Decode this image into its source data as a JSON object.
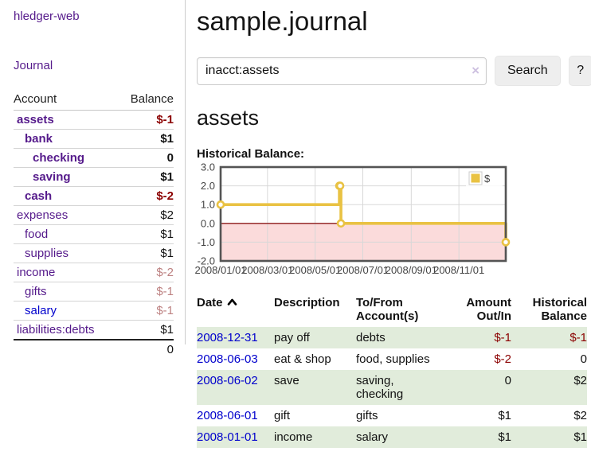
{
  "app": {
    "name": "hledger-web"
  },
  "colors": {
    "link_purple": "#551A8B",
    "link_blue": "#0000CC",
    "negative_red": "#8B0000",
    "negative_faded": "#BD8181",
    "row_stripe_green": "#E1ECDB",
    "chart_gold": "#E9C243"
  },
  "sidebar": {
    "journal_link": "Journal",
    "table": {
      "account_header": "Account",
      "balance_header": "Balance",
      "rows": [
        {
          "account": "assets",
          "balance": "$-1",
          "indent": 1,
          "bold": true,
          "balance_style": "negative"
        },
        {
          "account": "bank",
          "balance": "$1",
          "indent": 2,
          "bold": true,
          "balance_style": "plain"
        },
        {
          "account": "checking",
          "balance": "0",
          "indent": 3,
          "bold": true,
          "balance_style": "plain"
        },
        {
          "account": "saving",
          "balance": "$1",
          "indent": 3,
          "bold": true,
          "balance_style": "plain"
        },
        {
          "account": "cash",
          "balance": "$-2",
          "indent": 2,
          "bold": true,
          "balance_style": "negative"
        },
        {
          "account": "expenses",
          "balance": "$2",
          "indent": 1,
          "bold": false,
          "balance_style": "plain"
        },
        {
          "account": "food",
          "balance": "$1",
          "indent": 2,
          "bold": false,
          "balance_style": "plain"
        },
        {
          "account": "supplies",
          "balance": "$1",
          "indent": 2,
          "bold": false,
          "balance_style": "plain"
        },
        {
          "account": "income",
          "balance": "$-2",
          "indent": 1,
          "bold": false,
          "balance_style": "negative-faded"
        },
        {
          "account": "gifts",
          "balance": "$-1",
          "indent": 2,
          "bold": false,
          "balance_style": "negative-faded"
        },
        {
          "account": "salary",
          "balance": "$-1",
          "indent": 2,
          "bold": false,
          "balance_style": "negative-faded",
          "link_color": "blue"
        },
        {
          "account": "liabilities:debts",
          "balance": "$1",
          "indent": 1,
          "bold": false,
          "balance_style": "plain"
        }
      ],
      "total": "0"
    }
  },
  "header": {
    "title": "sample.journal"
  },
  "search": {
    "value": "inacct:assets",
    "clear_icon": "×",
    "button_label": "Search",
    "help_label": "?"
  },
  "account_page": {
    "title": "assets",
    "chart_label": "Historical Balance:"
  },
  "chart_data": {
    "type": "line",
    "title": "Historical Balance",
    "step": true,
    "series": [
      {
        "name": "$",
        "color": "#E9C243",
        "points": [
          {
            "date": "2008-01-01",
            "value": 1
          },
          {
            "date": "2008-06-01",
            "value": 2
          },
          {
            "date": "2008-06-02",
            "value": 2
          },
          {
            "date": "2008-06-03",
            "value": 0
          },
          {
            "date": "2008-12-31",
            "value": -1
          }
        ]
      }
    ],
    "xlim": [
      "2008-01-01",
      "2008-12-31"
    ],
    "ylim": [
      -2,
      3
    ],
    "x_ticks": [
      {
        "date": "2008-01-01",
        "label": "2008/01/01"
      },
      {
        "date": "2008-03-01",
        "label": "2008/03/01"
      },
      {
        "date": "2008-05-01",
        "label": "2008/05/01"
      },
      {
        "date": "2008-07-01",
        "label": "2008/07/01"
      },
      {
        "date": "2008-09-01",
        "label": "2008/09/01"
      },
      {
        "date": "2008-11-01",
        "label": "2008/11/01"
      }
    ],
    "y_ticks": [
      {
        "v": 3,
        "label": "3.0"
      },
      {
        "v": 2,
        "label": "2.0"
      },
      {
        "v": 1,
        "label": "1.0"
      },
      {
        "v": 0,
        "label": "0.0"
      },
      {
        "v": -1,
        "label": "-1.0"
      },
      {
        "v": -2,
        "label": "-2.0"
      }
    ],
    "legend": {
      "position": "top-right",
      "label": "$"
    },
    "grid": true,
    "negative_region_color": "#FBDBDB",
    "zero_line_color": "#8B1A1A",
    "grid_color": "#D8D8D8",
    "border_color": "#545454",
    "tick_label_color": "#444444"
  },
  "register": {
    "columns": {
      "date": "Date",
      "description": "Description",
      "accounts": "To/From Account(s)",
      "amount": "Amount Out/In",
      "balance": "Historical Balance"
    },
    "sort": "ascending",
    "rows": [
      {
        "date": "2008-12-31",
        "description": "pay off",
        "accounts": "debts",
        "amount": "$-1",
        "amount_negative": true,
        "balance": "$-1",
        "balance_negative": true
      },
      {
        "date": "2008-06-03",
        "description": "eat & shop",
        "accounts": "food, supplies",
        "amount": "$-2",
        "amount_negative": true,
        "balance": "0",
        "balance_negative": false
      },
      {
        "date": "2008-06-02",
        "description": "save",
        "accounts": "saving, checking",
        "amount": "0",
        "amount_negative": false,
        "balance": "$2",
        "balance_negative": false
      },
      {
        "date": "2008-06-01",
        "description": "gift",
        "accounts": "gifts",
        "amount": "$1",
        "amount_negative": false,
        "balance": "$2",
        "balance_negative": false
      },
      {
        "date": "2008-01-01",
        "description": "income",
        "accounts": "salary",
        "amount": "$1",
        "amount_negative": false,
        "balance": "$1",
        "balance_negative": false
      }
    ]
  }
}
